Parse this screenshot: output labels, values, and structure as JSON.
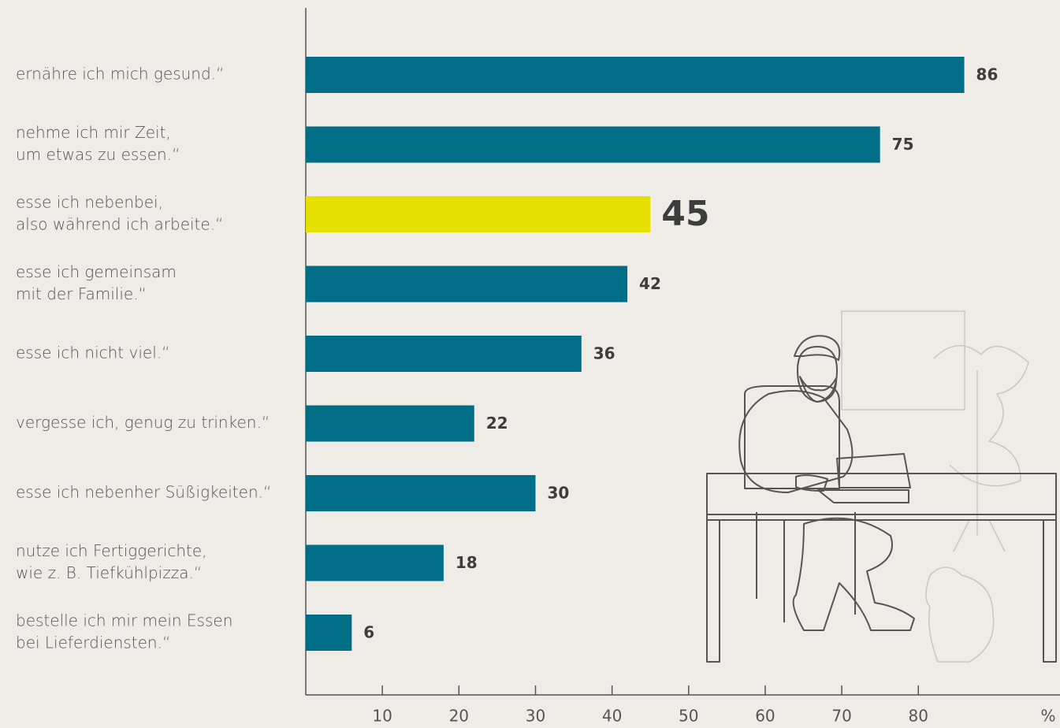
{
  "chart_data": {
    "type": "bar",
    "orientation": "horizontal",
    "categories": [
      [
        "ernähre ich mich gesund.“"
      ],
      [
        "nehme ich mir Zeit,",
        "um etwas zu essen.“"
      ],
      [
        "esse ich nebenbei,",
        "also während ich arbeite.“"
      ],
      [
        "esse ich gemeinsam",
        "mit der Familie.“"
      ],
      [
        "esse ich nicht viel.“"
      ],
      [
        "vergesse ich, genug zu trinken.“"
      ],
      [
        "esse ich nebenher Süßigkeiten.“"
      ],
      [
        "nutze ich Fertiggerichte,",
        "wie z. B. Tiefkühlpizza.“"
      ],
      [
        "bestelle ich mir mein Essen",
        "bei Lieferdiensten.“"
      ]
    ],
    "values": [
      86,
      75,
      45,
      42,
      36,
      22,
      30,
      18,
      6
    ],
    "color": "#006e87",
    "highlight_color": "#e6e000",
    "highlight": [
      2
    ],
    "xlim": [
      0,
      98.5
    ],
    "xticks": [
      10,
      20,
      30,
      40,
      50,
      60,
      70,
      80
    ],
    "x_unit": "%"
  }
}
